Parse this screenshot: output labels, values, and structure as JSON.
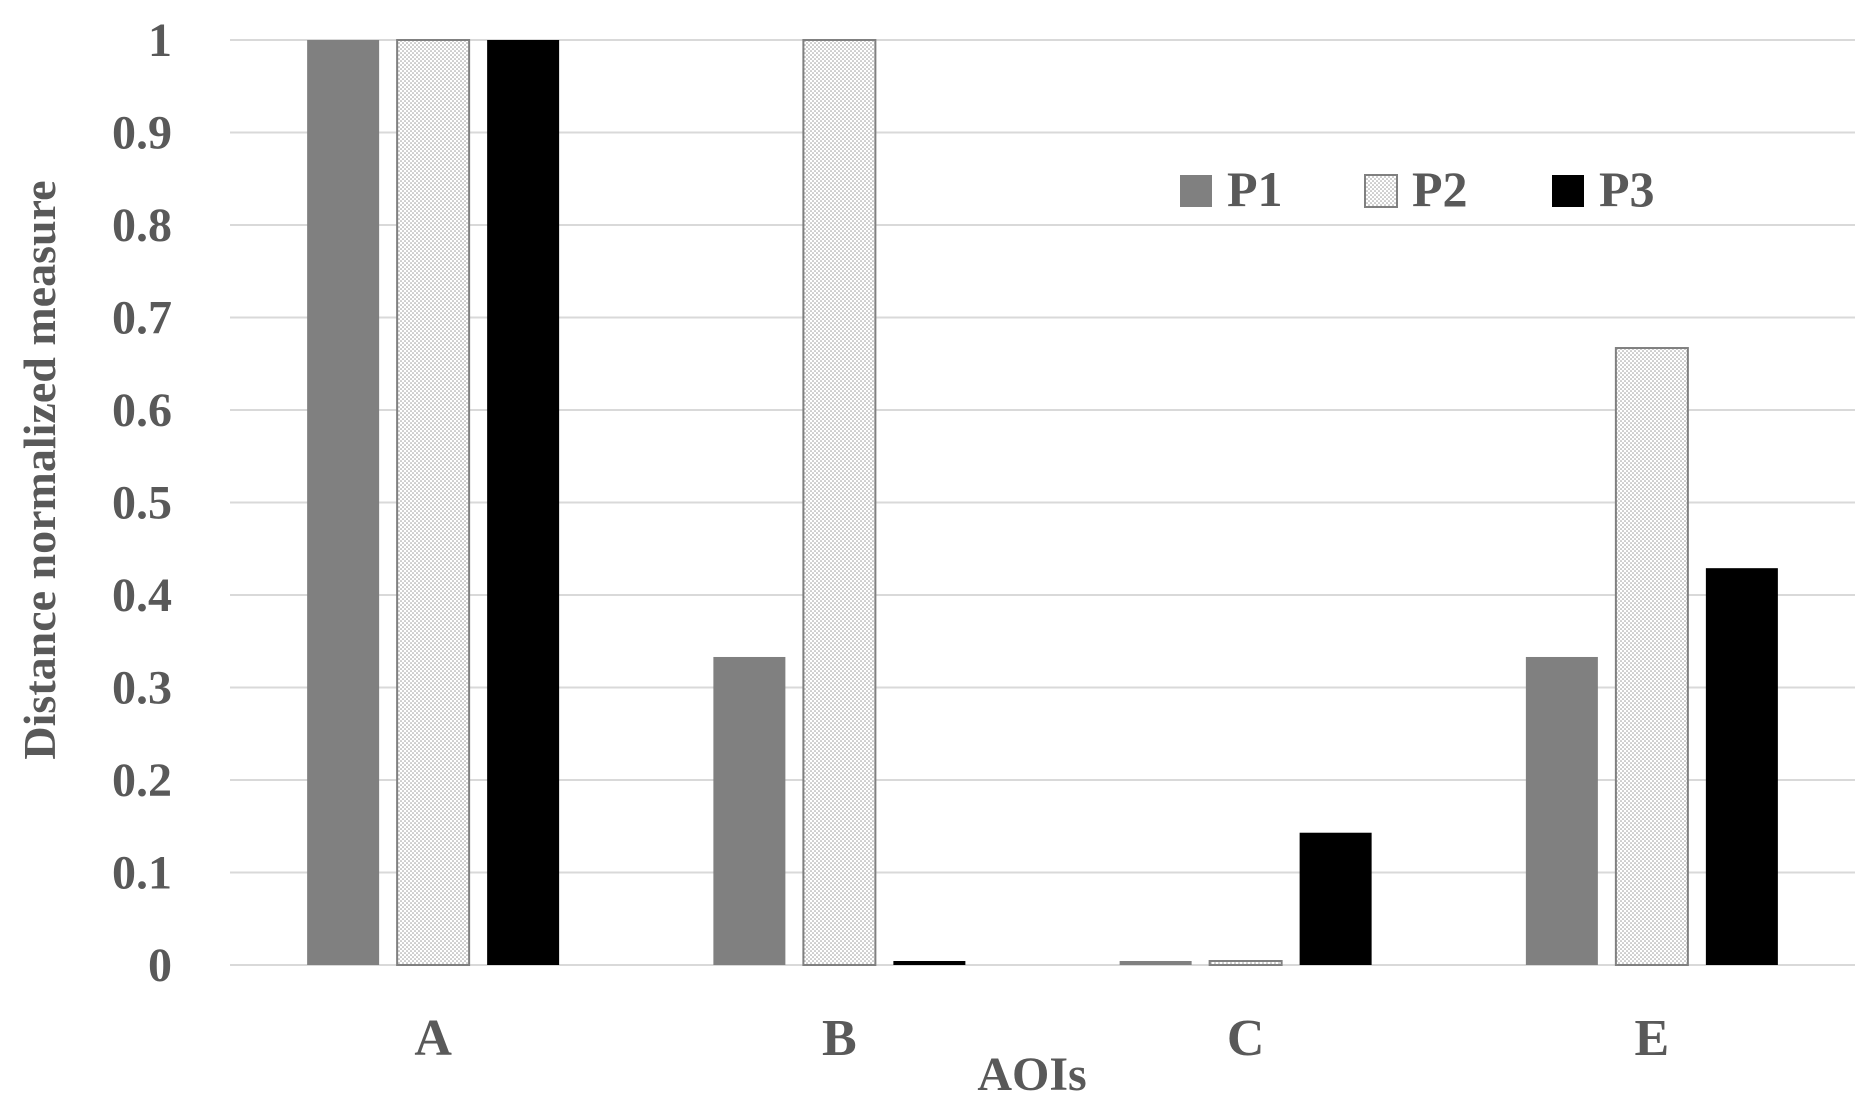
{
  "chart_data": {
    "type": "bar",
    "title": "",
    "xlabel": "AOIs",
    "ylabel": "Distance normalized measure",
    "categories": [
      "A",
      "B",
      "C",
      "E"
    ],
    "series": [
      {
        "name": "P1",
        "values": [
          1.0,
          0.333,
          0.0,
          0.333
        ],
        "color": "#808080",
        "pattern": "solid"
      },
      {
        "name": "P2",
        "values": [
          1.0,
          1.0,
          0.0,
          0.667
        ],
        "color": "#ffffff",
        "pattern": "dotted"
      },
      {
        "name": "P3",
        "values": [
          1.0,
          0.0,
          0.143,
          0.429
        ],
        "color": "#000000",
        "pattern": "solid"
      }
    ],
    "ylim": [
      0,
      1
    ],
    "yticks": [
      0,
      0.1,
      0.2,
      0.3,
      0.4,
      0.5,
      0.6,
      0.7,
      0.8,
      0.9,
      1
    ],
    "ytick_labels": [
      "0",
      "0.1",
      "0.2",
      "0.3",
      "0.4",
      "0.5",
      "0.6",
      "0.7",
      "0.8",
      "0.9",
      "1"
    ],
    "grid": true,
    "legend_position": "top-right"
  }
}
